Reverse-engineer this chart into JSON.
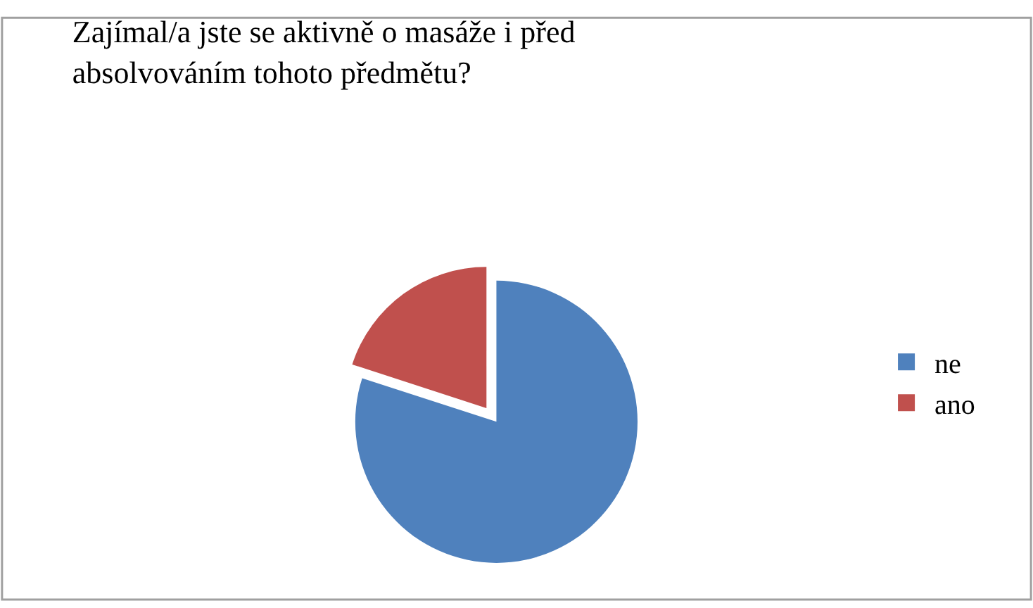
{
  "chart_data": {
    "type": "pie",
    "title": "Zajímal/a jste se aktivně o masáže i před\nabsolvováním tohoto předmětu?",
    "categories": [
      "ne",
      "ano"
    ],
    "values": [
      80,
      20
    ],
    "colors": [
      "#4f81bd",
      "#c0504d"
    ],
    "legend": "right"
  }
}
